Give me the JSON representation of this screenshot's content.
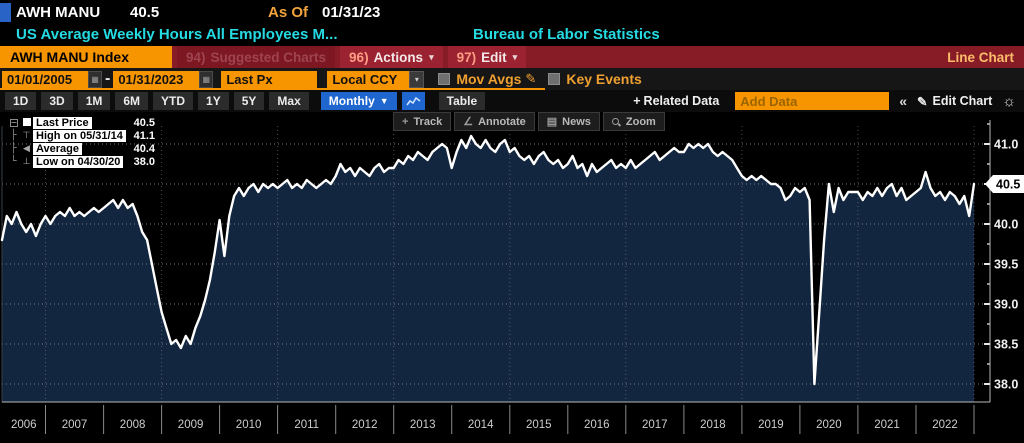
{
  "titlebar": {
    "security": "AWH MANU",
    "last_price": "40.5",
    "as_of_label": "As Of",
    "as_of_date": "01/31/23",
    "description": "US Average Weekly Hours All Employees M...",
    "source": "Bureau of Labor Statistics"
  },
  "menubar": {
    "security_tab": "AWH MANU Index",
    "suggested_num": "94)",
    "suggested_label": "Suggested Charts",
    "actions_num": "96)",
    "actions_label": "Actions",
    "edit_num": "97)",
    "edit_label": "Edit",
    "chart_type": "Line Chart"
  },
  "settings": {
    "date_from": "01/01/2005",
    "separator": "-",
    "date_to": "01/31/2023",
    "price_field": "Last Px",
    "currency": "Local CCY",
    "mov_avgs_label": "Mov Avgs",
    "key_events_label": "Key Events"
  },
  "toolbar": {
    "ranges": [
      "1D",
      "3D",
      "1M",
      "6M",
      "YTD",
      "1Y",
      "5Y",
      "Max"
    ],
    "period": "Monthly",
    "table_label": "Table",
    "related_label": "Related Data",
    "add_data_placeholder": "Add Data",
    "collapse_label": "«",
    "edit_chart_label": "Edit Chart"
  },
  "overlay_buttons": [
    {
      "name": "track",
      "label": "Track"
    },
    {
      "name": "annotate",
      "label": "Annotate"
    },
    {
      "name": "news",
      "label": "News"
    },
    {
      "name": "zoom",
      "label": "Zoom"
    }
  ],
  "legend": {
    "rows": [
      {
        "marker": "last",
        "label": "Last Price",
        "value": "40.5"
      },
      {
        "marker": "high",
        "label": "High on 05/31/14",
        "value": "41.1"
      },
      {
        "marker": "average",
        "label": "Average",
        "value": "40.4"
      },
      {
        "marker": "low",
        "label": "Low on 04/30/20",
        "value": "38.0"
      }
    ]
  },
  "colors": {
    "accent_orange": "#f79500",
    "menubar_red": "#871b26",
    "cyan_text": "#25dbe3",
    "period_blue": "#1f66cf",
    "chart_fill": "#13263f",
    "chart_line": "#ffffff"
  },
  "chart_data": {
    "type": "line",
    "title": "US Average Weekly Hours All Employees Manufacturing",
    "source": "Bureau of Labor Statistics",
    "frequency": "Monthly",
    "x_start": "2006-04",
    "x_end": "2023-01",
    "ylim": [
      37.6,
      41.4
    ],
    "yticks": [
      41.0,
      40.5,
      40.0,
      39.5,
      39.0,
      38.5,
      38.0
    ],
    "ytick_labels": [
      "41.0",
      "40.5",
      "40.0",
      "39.5",
      "39.0",
      "38.5",
      "38.0"
    ],
    "year_labels": [
      "2006",
      "2007",
      "2008",
      "2009",
      "2010",
      "2011",
      "2012",
      "2013",
      "2014",
      "2015",
      "2016",
      "2017",
      "2018",
      "2019",
      "2020",
      "2021",
      "2022"
    ],
    "grid": true,
    "legend_position": "top-left",
    "last_value": 40.5,
    "last_label": "40.5",
    "stats": {
      "last": {
        "value": 40.5
      },
      "high": {
        "date": "05/31/14",
        "value": 41.1
      },
      "average": {
        "value": 40.4
      },
      "low": {
        "date": "04/30/20",
        "value": 38.0
      }
    },
    "values": [
      39.8,
      40.1,
      40.0,
      40.15,
      40.0,
      39.9,
      40.0,
      39.85,
      40.0,
      40.1,
      40.0,
      40.1,
      40.15,
      40.1,
      40.2,
      40.1,
      40.15,
      40.1,
      40.15,
      40.2,
      40.15,
      40.2,
      40.25,
      40.3,
      40.2,
      40.3,
      40.2,
      40.25,
      40.1,
      39.9,
      39.8,
      39.5,
      39.2,
      38.9,
      38.7,
      38.5,
      38.55,
      38.45,
      38.6,
      38.5,
      38.7,
      38.85,
      39.05,
      39.3,
      39.65,
      40.05,
      39.6,
      40.1,
      40.35,
      40.45,
      40.35,
      40.45,
      40.5,
      40.4,
      40.5,
      40.45,
      40.5,
      40.45,
      40.5,
      40.55,
      40.45,
      40.5,
      40.45,
      40.55,
      40.5,
      40.45,
      40.5,
      40.55,
      40.5,
      40.6,
      40.75,
      40.65,
      40.7,
      40.6,
      40.7,
      40.65,
      40.6,
      40.7,
      40.75,
      40.65,
      40.7,
      40.7,
      40.8,
      40.75,
      40.85,
      40.8,
      40.9,
      40.85,
      40.8,
      40.9,
      40.95,
      41.0,
      40.95,
      40.7,
      40.9,
      41.05,
      40.95,
      41.1,
      41.0,
      40.95,
      41.05,
      40.95,
      40.9,
      41.0,
      41.05,
      40.9,
      40.95,
      40.85,
      40.8,
      40.85,
      40.75,
      40.85,
      40.9,
      40.8,
      40.75,
      40.8,
      40.7,
      40.75,
      40.85,
      40.7,
      40.75,
      40.6,
      40.75,
      40.65,
      40.7,
      40.75,
      40.8,
      40.7,
      40.75,
      40.7,
      40.8,
      40.7,
      40.75,
      40.8,
      40.85,
      40.9,
      40.8,
      40.85,
      40.9,
      40.95,
      40.9,
      40.9,
      41.0,
      40.95,
      41.0,
      40.95,
      41.0,
      40.9,
      40.85,
      40.9,
      40.85,
      40.8,
      40.7,
      40.6,
      40.55,
      40.6,
      40.55,
      40.6,
      40.55,
      40.5,
      40.5,
      40.45,
      40.3,
      40.35,
      40.45,
      40.4,
      40.45,
      40.3,
      38.0,
      38.9,
      39.8,
      40.5,
      40.15,
      40.45,
      40.3,
      40.4,
      40.4,
      40.4,
      40.3,
      40.4,
      40.35,
      40.45,
      40.35,
      40.45,
      40.5,
      40.35,
      40.45,
      40.3,
      40.35,
      40.4,
      40.45,
      40.65,
      40.45,
      40.35,
      40.4,
      40.3,
      40.4,
      40.35,
      40.25,
      40.35,
      40.1,
      40.5
    ]
  }
}
